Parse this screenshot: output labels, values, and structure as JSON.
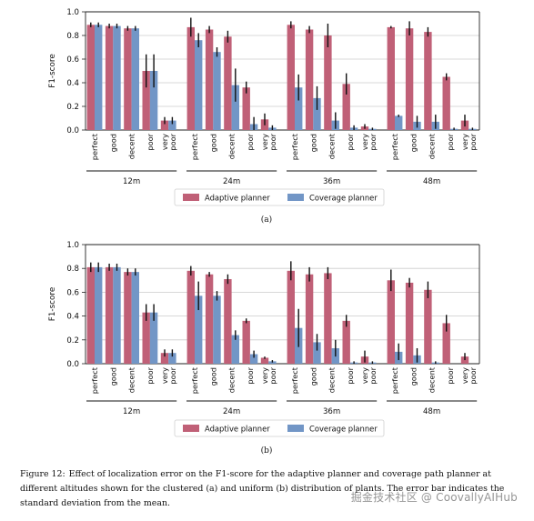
{
  "colors": {
    "adaptive": "#c06077",
    "coverage": "#7296c6",
    "error": "#111111",
    "grid": "#cccccc"
  },
  "chart_data": [
    {
      "type": "bar",
      "panel_label": "(a)",
      "ylabel": "F1-score",
      "ylim": [
        0,
        1.0
      ],
      "yticks": [
        "0.0",
        "0.2",
        "0.4",
        "0.6",
        "0.8",
        "1.0"
      ],
      "grid": "horizontal",
      "legend_position": "bottom-center",
      "groups": [
        "12m",
        "24m",
        "36m",
        "48m"
      ],
      "categories": [
        "perfect",
        "good",
        "decent",
        "poor",
        "very poor"
      ],
      "series": [
        {
          "name": "Adaptive planner",
          "values": [
            [
              0.89,
              0.88,
              0.86,
              0.5,
              0.08
            ],
            [
              0.87,
              0.85,
              0.79,
              0.36,
              0.09
            ],
            [
              0.89,
              0.85,
              0.8,
              0.39,
              0.03
            ],
            [
              0.87,
              0.86,
              0.83,
              0.45,
              0.08
            ]
          ],
          "errors": [
            [
              0.02,
              0.02,
              0.02,
              0.14,
              0.03
            ],
            [
              0.08,
              0.03,
              0.05,
              0.05,
              0.05
            ],
            [
              0.03,
              0.03,
              0.1,
              0.09,
              0.02
            ],
            [
              0.01,
              0.06,
              0.04,
              0.03,
              0.05
            ]
          ]
        },
        {
          "name": "Coverage planner",
          "values": [
            [
              0.89,
              0.88,
              0.86,
              0.5,
              0.08
            ],
            [
              0.76,
              0.66,
              0.38,
              0.05,
              0.02
            ],
            [
              0.36,
              0.27,
              0.08,
              0.02,
              0.01
            ],
            [
              0.12,
              0.07,
              0.07,
              0.01,
              0.01
            ]
          ],
          "errors": [
            [
              0.02,
              0.02,
              0.02,
              0.14,
              0.03
            ],
            [
              0.06,
              0.04,
              0.14,
              0.06,
              0.02
            ],
            [
              0.11,
              0.1,
              0.07,
              0.02,
              0.01
            ],
            [
              0.01,
              0.05,
              0.06,
              0.01,
              0.01
            ]
          ]
        }
      ]
    },
    {
      "type": "bar",
      "panel_label": "(b)",
      "ylabel": "F1-score",
      "ylim": [
        0,
        1.0
      ],
      "yticks": [
        "0.0",
        "0.2",
        "0.4",
        "0.6",
        "0.8",
        "1.0"
      ],
      "grid": "horizontal",
      "legend_position": "bottom-center",
      "groups": [
        "12m",
        "24m",
        "36m",
        "48m"
      ],
      "categories": [
        "perfect",
        "good",
        "decent",
        "poor",
        "very poor"
      ],
      "series": [
        {
          "name": "Adaptive planner",
          "values": [
            [
              0.81,
              0.81,
              0.77,
              0.43,
              0.09
            ],
            [
              0.78,
              0.75,
              0.71,
              0.36,
              0.05
            ],
            [
              0.78,
              0.75,
              0.76,
              0.36,
              0.06
            ],
            [
              0.7,
              0.68,
              0.62,
              0.34,
              0.06
            ]
          ],
          "errors": [
            [
              0.04,
              0.03,
              0.03,
              0.07,
              0.03
            ],
            [
              0.04,
              0.02,
              0.04,
              0.02,
              0.01
            ],
            [
              0.08,
              0.06,
              0.05,
              0.05,
              0.05
            ],
            [
              0.09,
              0.04,
              0.07,
              0.07,
              0.03
            ]
          ]
        },
        {
          "name": "Coverage planner",
          "values": [
            [
              0.81,
              0.81,
              0.77,
              0.43,
              0.09
            ],
            [
              0.57,
              0.57,
              0.24,
              0.08,
              0.02
            ],
            [
              0.3,
              0.18,
              0.13,
              0.01,
              0.01
            ],
            [
              0.1,
              0.07,
              0.01,
              0.0,
              0.0
            ]
          ],
          "errors": [
            [
              0.04,
              0.03,
              0.03,
              0.07,
              0.03
            ],
            [
              0.12,
              0.04,
              0.04,
              0.03,
              0.01
            ],
            [
              0.16,
              0.07,
              0.07,
              0.01,
              0.01
            ],
            [
              0.07,
              0.06,
              0.01,
              0.0,
              0.0
            ]
          ]
        }
      ]
    }
  ],
  "caption": {
    "label": "Figure 12:",
    "text": "Effect of localization error on the F1-score for the adaptive planner and coverage path planner at different altitudes shown for the clustered (a) and uniform (b) distribution of plants. The error bar indicates the standard deviation from the mean."
  },
  "watermark": "掘金技术社区 @ CoovallyAIHub"
}
